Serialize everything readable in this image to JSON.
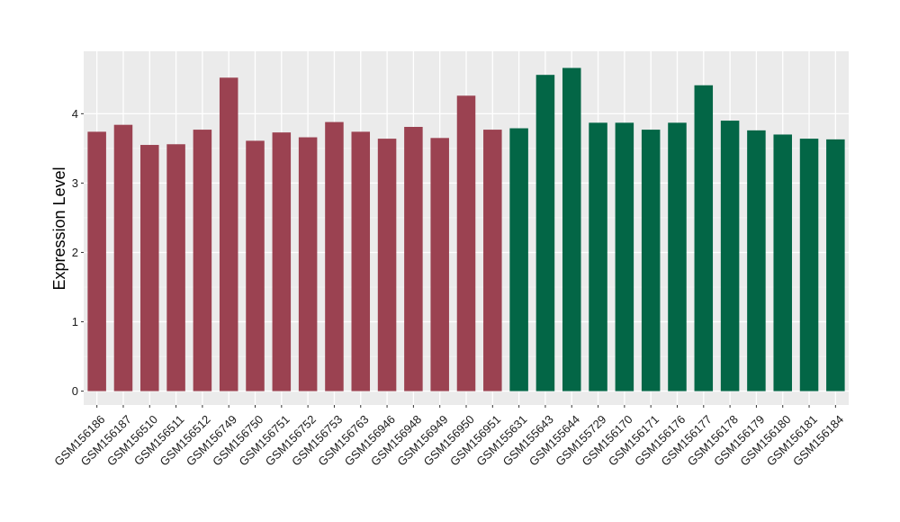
{
  "chart_data": {
    "type": "bar",
    "title": "",
    "xlabel": "",
    "ylabel": "Expression Level",
    "ylim": [
      -0.2,
      4.9
    ],
    "yticks": [
      0,
      1,
      2,
      3,
      4
    ],
    "grid": true,
    "panel_background": "#ebebeb",
    "categories": [
      "GSM156186",
      "GSM156187",
      "GSM156510",
      "GSM156511",
      "GSM156512",
      "GSM156749",
      "GSM156750",
      "GSM156751",
      "GSM156752",
      "GSM156753",
      "GSM156763",
      "GSM156946",
      "GSM156948",
      "GSM156949",
      "GSM156950",
      "GSM156951",
      "GSM155631",
      "GSM155643",
      "GSM155644",
      "GSM155729",
      "GSM156170",
      "GSM156171",
      "GSM156176",
      "GSM156177",
      "GSM156178",
      "GSM156179",
      "GSM156180",
      "GSM156181",
      "GSM156184"
    ],
    "values": [
      3.74,
      3.84,
      3.55,
      3.56,
      3.77,
      4.52,
      3.61,
      3.73,
      3.66,
      3.88,
      3.74,
      3.64,
      3.81,
      3.65,
      4.26,
      3.77,
      3.79,
      4.56,
      4.66,
      3.87,
      3.87,
      3.77,
      3.87,
      4.41,
      3.9,
      3.76,
      3.7,
      3.64,
      3.63
    ],
    "colors": [
      "#9b4251",
      "#9b4251",
      "#9b4251",
      "#9b4251",
      "#9b4251",
      "#9b4251",
      "#9b4251",
      "#9b4251",
      "#9b4251",
      "#9b4251",
      "#9b4251",
      "#9b4251",
      "#9b4251",
      "#9b4251",
      "#9b4251",
      "#9b4251",
      "#036646",
      "#036646",
      "#036646",
      "#036646",
      "#036646",
      "#036646",
      "#036646",
      "#036646",
      "#036646",
      "#036646",
      "#036646",
      "#036646",
      "#036646"
    ]
  }
}
